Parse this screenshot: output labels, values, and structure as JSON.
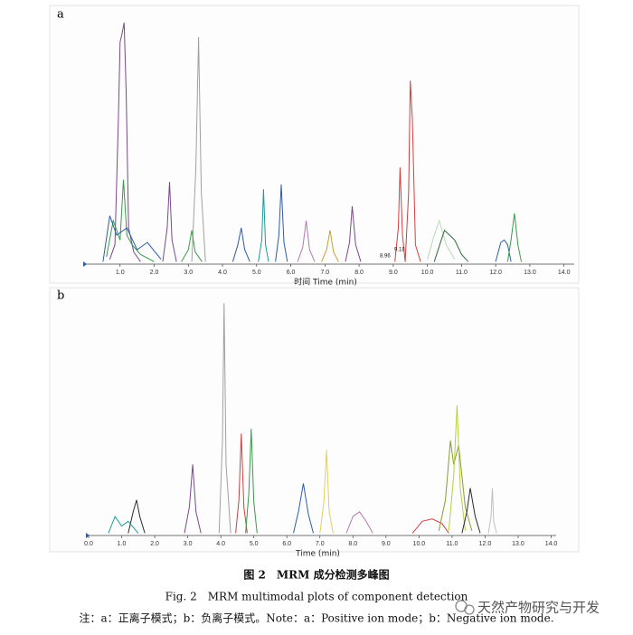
{
  "chart_data": [
    {
      "type": "line",
      "panel": "a",
      "xlabel": "时间 Time (min)",
      "xlim": [
        0,
        14.3
      ],
      "ylim": [
        0,
        100
      ],
      "xticks": [
        {
          "value": 1,
          "label": "1.0"
        },
        {
          "value": 2,
          "label": "2.0"
        },
        {
          "value": 3,
          "label": "3.0"
        },
        {
          "value": 4,
          "label": "4.0"
        },
        {
          "value": 5,
          "label": "5.0"
        },
        {
          "value": 6,
          "label": "6.0"
        },
        {
          "value": 7,
          "label": "7.0"
        },
        {
          "value": 8,
          "label": "8.0"
        },
        {
          "value": 9,
          "label": "9.0"
        },
        {
          "value": 10,
          "label": "10.0"
        },
        {
          "value": 11,
          "label": "11.0"
        },
        {
          "value": 12,
          "label": "12.0"
        },
        {
          "value": 13,
          "label": "13.0"
        },
        {
          "value": 14,
          "label": "14.0"
        }
      ],
      "annotations": [
        "9.18",
        "8.96"
      ],
      "series": [
        {
          "color": "#7a4a8a",
          "x": [
            0.7,
            0.85,
            0.95,
            1.0,
            1.05,
            1.12,
            1.18,
            1.25,
            1.4,
            1.6
          ],
          "values": [
            2,
            8,
            60,
            92,
            95,
            100,
            70,
            15,
            5,
            1
          ]
        },
        {
          "color": "#3a9a4a",
          "x": [
            0.6,
            0.8,
            1.0,
            1.1,
            1.2,
            1.35,
            1.6,
            2.0
          ],
          "values": [
            3,
            18,
            10,
            35,
            12,
            8,
            4,
            1
          ]
        },
        {
          "color": "#2b5ca8",
          "x": [
            0.5,
            0.7,
            0.9,
            1.2,
            1.5,
            1.8,
            2.2
          ],
          "values": [
            1,
            20,
            12,
            15,
            6,
            9,
            2
          ]
        },
        {
          "color": "#a0a0a0",
          "x": [
            3.1,
            3.22,
            3.3,
            3.38,
            3.5
          ],
          "values": [
            1,
            40,
            94,
            30,
            1
          ]
        },
        {
          "color": "#7a4a8a",
          "x": [
            2.25,
            2.38,
            2.45,
            2.52,
            2.65
          ],
          "values": [
            1,
            15,
            34,
            10,
            1
          ]
        },
        {
          "color": "#3a9a4a",
          "x": [
            2.8,
            3.0,
            3.1,
            3.2,
            3.4
          ],
          "values": [
            1,
            6,
            14,
            5,
            1
          ]
        },
        {
          "color": "#1f9a9a",
          "x": [
            5.05,
            5.15,
            5.2,
            5.26,
            5.35
          ],
          "values": [
            1,
            10,
            31,
            8,
            1
          ]
        },
        {
          "color": "#2b5ca8",
          "x": [
            5.55,
            5.65,
            5.72,
            5.8,
            5.9
          ],
          "values": [
            1,
            12,
            33,
            9,
            1
          ]
        },
        {
          "color": "#2b5ca8",
          "x": [
            4.3,
            4.45,
            4.55,
            4.65,
            4.8
          ],
          "values": [
            1,
            8,
            15,
            6,
            1
          ]
        },
        {
          "color": "#b07ab0",
          "x": [
            6.2,
            6.35,
            6.45,
            6.55,
            6.7
          ],
          "values": [
            1,
            7,
            18,
            6,
            1
          ]
        },
        {
          "color": "#7a4a8a",
          "x": [
            7.6,
            7.72,
            7.8,
            7.9,
            8.05
          ],
          "values": [
            1,
            9,
            24,
            8,
            1
          ]
        },
        {
          "color": "#c8a030",
          "x": [
            6.9,
            7.05,
            7.15,
            7.25,
            7.4
          ],
          "values": [
            1,
            6,
            14,
            5,
            1
          ]
        },
        {
          "color": "#d04040",
          "x": [
            9.05,
            9.15,
            9.2,
            9.27,
            9.35
          ],
          "values": [
            1,
            15,
            40,
            12,
            1
          ]
        },
        {
          "color": "#d04040",
          "x": [
            9.35,
            9.45,
            9.5,
            9.56,
            9.65,
            9.8
          ],
          "values": [
            1,
            30,
            76,
            60,
            8,
            1
          ]
        },
        {
          "color": "#b8d8b8",
          "x": [
            10.0,
            10.2,
            10.35,
            10.55,
            10.8
          ],
          "values": [
            2,
            12,
            18,
            8,
            2
          ]
        },
        {
          "color": "#2e6a3a",
          "x": [
            10.2,
            10.5,
            10.8,
            11.0,
            11.2
          ],
          "values": [
            1,
            14,
            10,
            4,
            1
          ]
        },
        {
          "color": "#2b5ca8",
          "x": [
            12.0,
            12.15,
            12.25,
            12.35,
            12.45
          ],
          "values": [
            1,
            9,
            10,
            8,
            1
          ]
        },
        {
          "color": "#3a9a4a",
          "x": [
            12.35,
            12.45,
            12.55,
            12.65,
            12.75
          ],
          "values": [
            1,
            10,
            21,
            8,
            1
          ]
        }
      ]
    },
    {
      "type": "line",
      "panel": "b",
      "xlabel": "Time (min)",
      "xlim": [
        0,
        14.15
      ],
      "ylim": [
        0,
        100
      ],
      "xticks": [
        {
          "value": 0,
          "label": "0.0"
        },
        {
          "value": 1,
          "label": "1.0"
        },
        {
          "value": 2,
          "label": "2.0"
        },
        {
          "value": 3,
          "label": "3.0"
        },
        {
          "value": 4,
          "label": "4.0"
        },
        {
          "value": 5,
          "label": "5.0"
        },
        {
          "value": 6,
          "label": "6.0"
        },
        {
          "value": 7,
          "label": "7.0"
        },
        {
          "value": 8,
          "label": "8.0"
        },
        {
          "value": 9,
          "label": "9.0"
        },
        {
          "value": 10,
          "label": "10.0"
        },
        {
          "value": 11,
          "label": "11.0"
        },
        {
          "value": 12,
          "label": "12.0"
        },
        {
          "value": 13,
          "label": "13.0"
        },
        {
          "value": 14,
          "label": "14.0"
        }
      ],
      "series": [
        {
          "color": "#2a2a2a",
          "x": [
            1.2,
            1.35,
            1.45,
            1.55,
            1.7
          ],
          "values": [
            1,
            10,
            15,
            8,
            1
          ]
        },
        {
          "color": "#1f9a9a",
          "x": [
            0.6,
            0.8,
            1.0,
            1.2,
            1.5
          ],
          "values": [
            1,
            8,
            4,
            6,
            1
          ]
        },
        {
          "color": "#7a4a8a",
          "x": [
            2.9,
            3.05,
            3.15,
            3.25,
            3.4
          ],
          "values": [
            1,
            12,
            30,
            10,
            1
          ]
        },
        {
          "color": "#a0a0a0",
          "x": [
            3.95,
            4.05,
            4.1,
            4.16,
            4.3
          ],
          "values": [
            1,
            40,
            98,
            30,
            1
          ]
        },
        {
          "color": "#d04040",
          "x": [
            4.45,
            4.55,
            4.62,
            4.7,
            4.8
          ],
          "values": [
            1,
            15,
            43,
            12,
            1
          ]
        },
        {
          "color": "#3a9a4a",
          "x": [
            4.75,
            4.85,
            4.92,
            5.0,
            5.1
          ],
          "values": [
            1,
            18,
            45,
            14,
            1
          ]
        },
        {
          "color": "#2b5ca8",
          "x": [
            6.2,
            6.35,
            6.5,
            6.65,
            6.8
          ],
          "values": [
            1,
            10,
            22,
            9,
            1
          ]
        },
        {
          "color": "#e0d060",
          "x": [
            7.0,
            7.12,
            7.2,
            7.28,
            7.4
          ],
          "values": [
            1,
            14,
            36,
            10,
            1
          ]
        },
        {
          "color": "#b07ab0",
          "x": [
            7.8,
            8.0,
            8.2,
            8.4,
            8.6
          ],
          "values": [
            1,
            8,
            10,
            6,
            1
          ]
        },
        {
          "color": "#d04040",
          "x": [
            9.8,
            10.1,
            10.4,
            10.7,
            10.9
          ],
          "values": [
            1,
            6,
            7,
            5,
            1
          ]
        },
        {
          "color": "#8a9a30",
          "x": [
            10.6,
            10.8,
            10.95,
            11.05,
            11.2,
            11.4,
            11.6
          ],
          "values": [
            2,
            15,
            40,
            30,
            38,
            12,
            2
          ]
        },
        {
          "color": "#b8d040",
          "x": [
            10.9,
            11.05,
            11.15,
            11.25,
            11.4
          ],
          "values": [
            2,
            25,
            55,
            20,
            2
          ]
        },
        {
          "color": "#2a2a2a",
          "x": [
            11.3,
            11.45,
            11.55,
            11.7,
            11.85
          ],
          "values": [
            1,
            10,
            20,
            8,
            1
          ]
        },
        {
          "color": "#c0c0c0",
          "x": [
            12.1,
            12.18,
            12.22,
            12.26,
            12.35
          ],
          "values": [
            1,
            8,
            20,
            6,
            1
          ]
        }
      ]
    }
  ],
  "caption": {
    "title_cn": "图 2　MRM 成分检测多峰图",
    "title_en": "Fig. 2　MRM multimodal plots of component detection",
    "note": "注：a：正离子模式；b：负离子模式。Note：a：Positive ion mode；b：Negative ion mode."
  },
  "watermark": "天然产物研究与开发"
}
